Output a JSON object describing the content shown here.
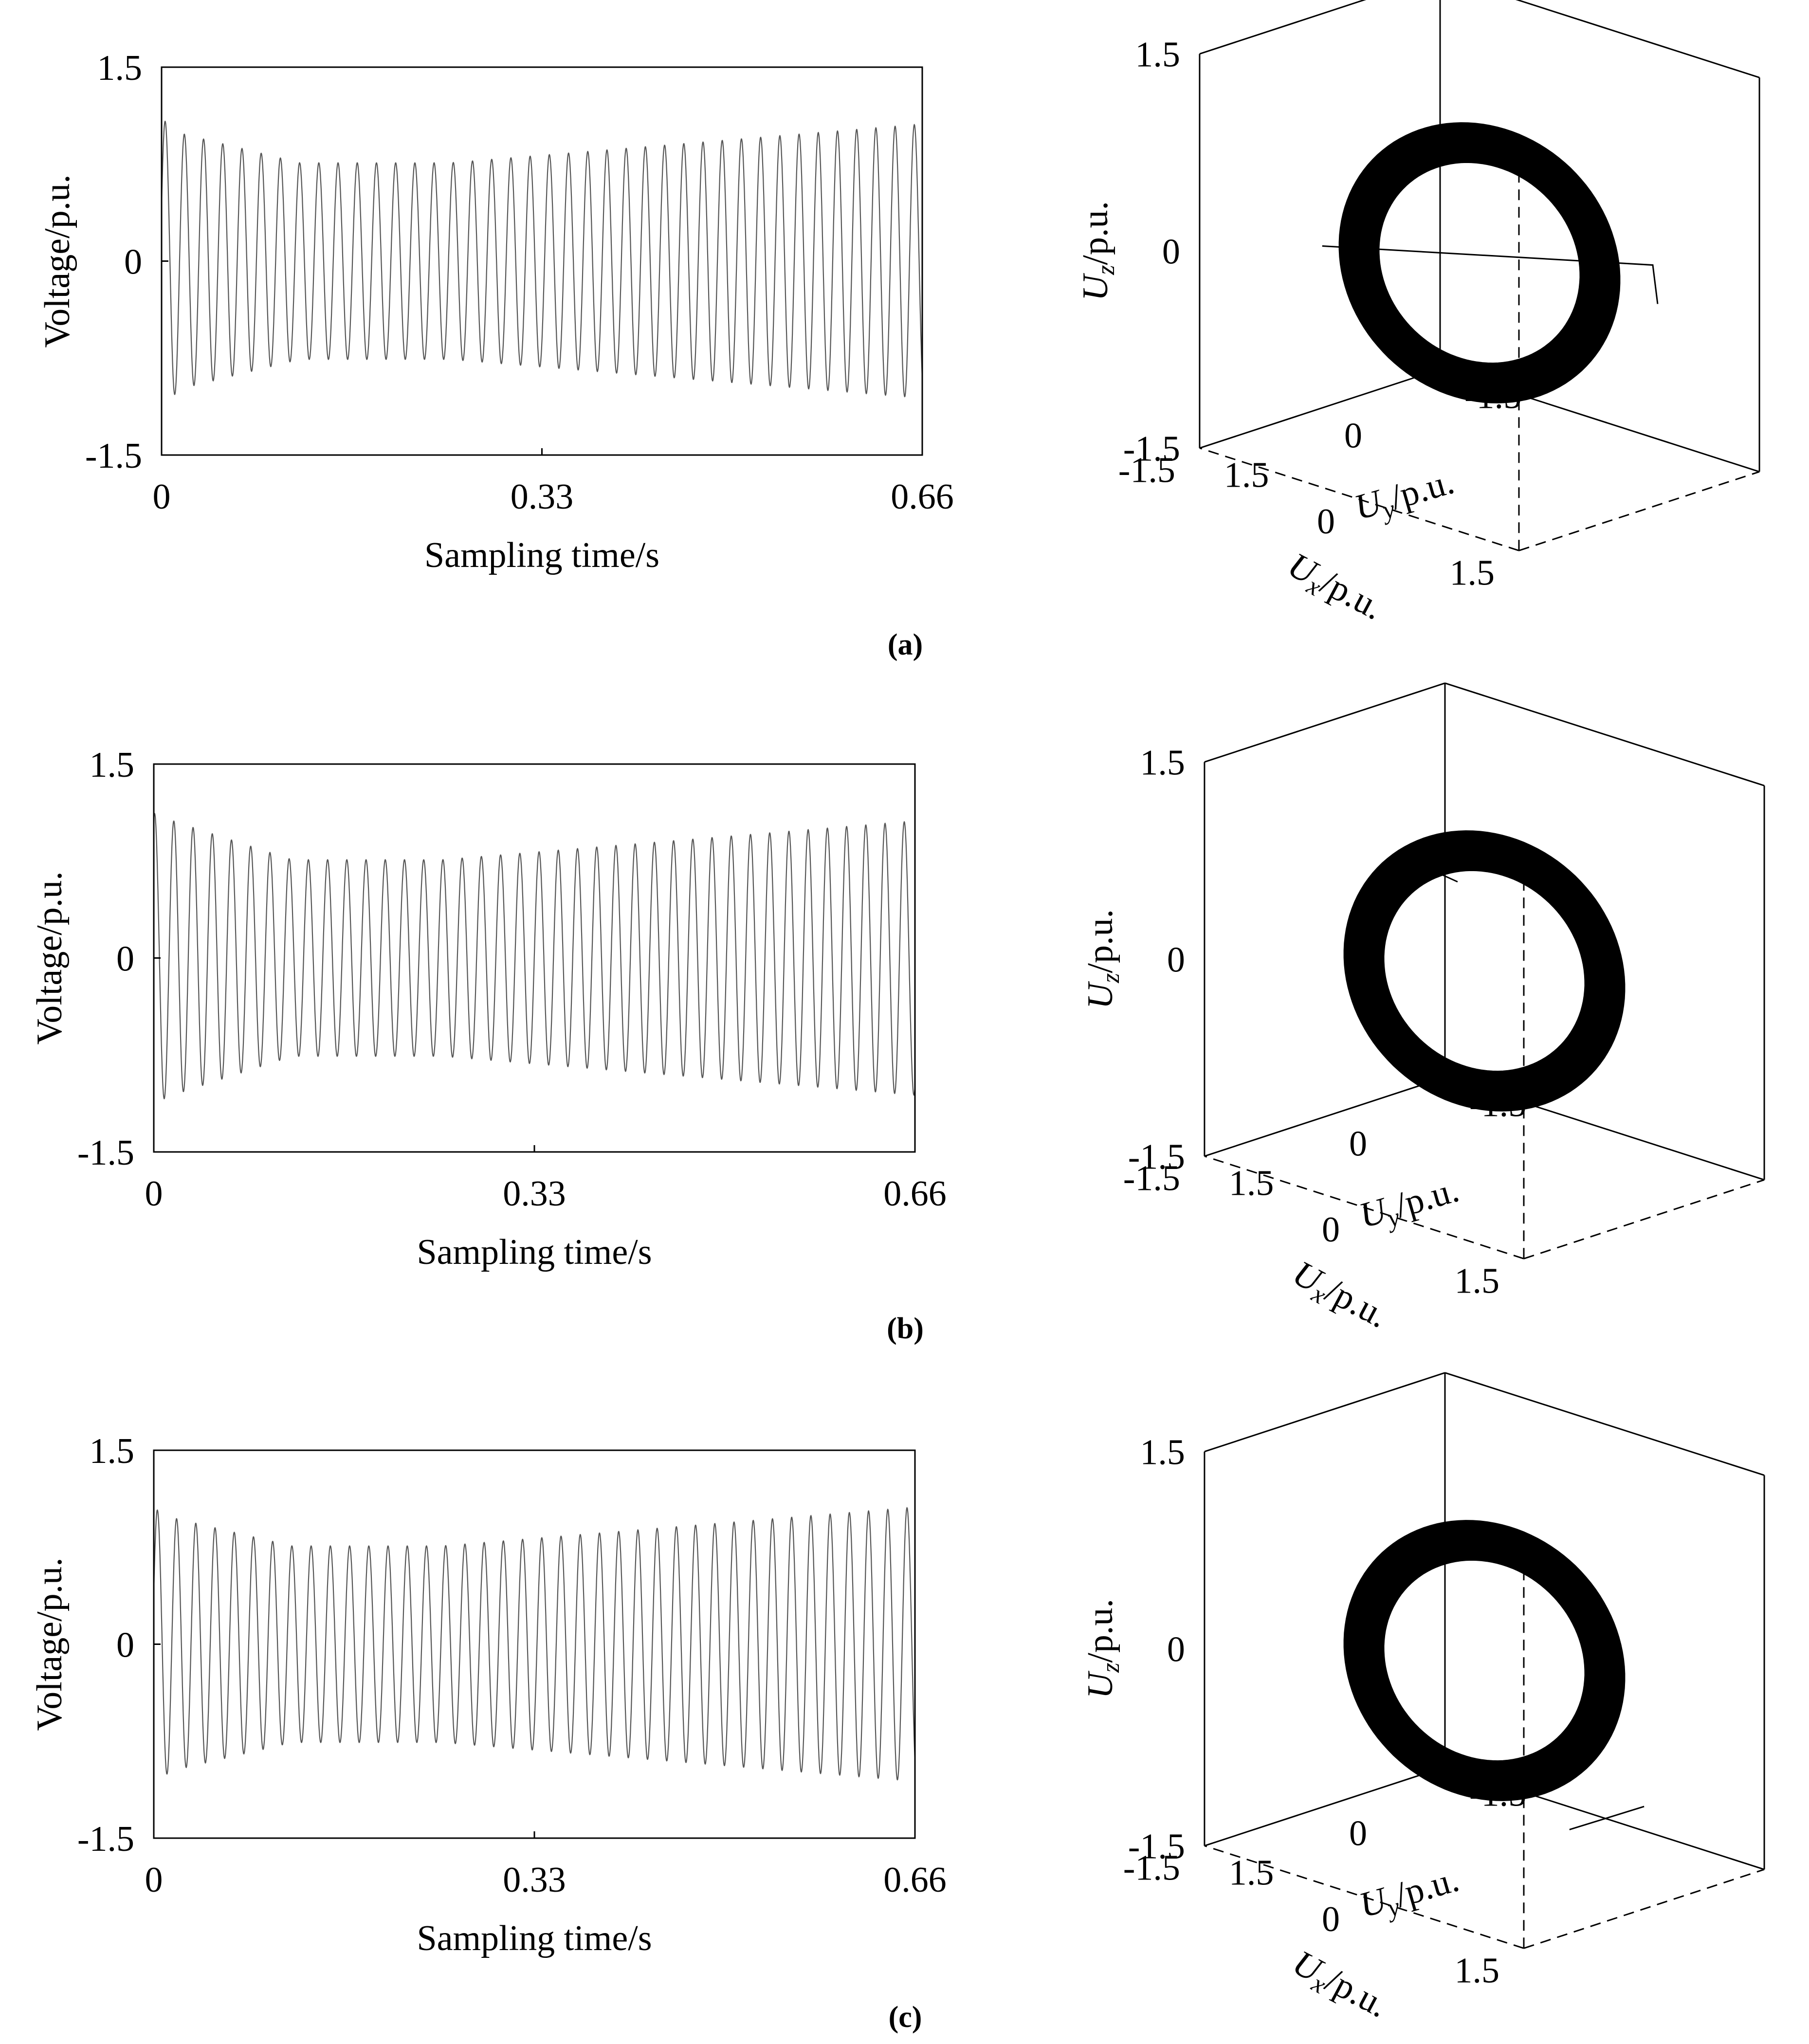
{
  "chart_data": [
    {
      "panel": "a",
      "caption": "(a)",
      "left_plot": {
        "type": "line",
        "ylabel": "Voltage/p.u.",
        "xlabel": "Sampling time/s",
        "xlim": [
          0,
          0.66
        ],
        "ylim": [
          -1.5,
          1.5
        ],
        "xticks": [
          "0",
          "0.33",
          "0.66"
        ],
        "yticks": [
          "1.5",
          "0",
          "-1.5"
        ],
        "frequency_hz": 60,
        "amplitude_start": 0.98,
        "amplitude_min": 0.76,
        "amplitude_end": 1.06,
        "initial_peak": 1.1
      },
      "right_plot": {
        "type": "scatter3d",
        "zlabel_main": "U",
        "zlabel_sub": "z",
        "zlabel_unit": "/p.u.",
        "xlabel_main": "U",
        "xlabel_sub": "x",
        "xlabel_unit": "/p.u.",
        "ylabel_main": "U",
        "ylabel_sub": "y",
        "ylabel_unit": "/p.u.",
        "zticks": [
          "1.5",
          "0",
          "-1.5"
        ],
        "xticks": [
          "1.5",
          "0",
          "-1.5"
        ],
        "yticks": [
          "-1.5",
          "0",
          "1.5"
        ],
        "lim": [
          -1.5,
          1.5
        ],
        "radius_min": 0.76,
        "radius_max": 1.06,
        "transient": "line-through-center"
      }
    },
    {
      "panel": "b",
      "caption": "(b)",
      "left_plot": {
        "type": "line",
        "ylabel": "Voltage/p.u.",
        "xlabel": "Sampling time/s",
        "xlim": [
          0,
          0.66
        ],
        "ylim": [
          -1.5,
          1.5
        ],
        "xticks": [
          "0",
          "0.33",
          "0.66"
        ],
        "yticks": [
          "1.5",
          "0",
          "-1.5"
        ],
        "frequency_hz": 60,
        "amplitude_start": 1.05,
        "amplitude_min": 0.76,
        "amplitude_end": 1.06,
        "initial_peak": 1.12
      },
      "right_plot": {
        "type": "scatter3d",
        "zlabel_main": "U",
        "zlabel_sub": "z",
        "zlabel_unit": "/p.u.",
        "xlabel_main": "U",
        "xlabel_sub": "x",
        "xlabel_unit": "/p.u.",
        "ylabel_main": "U",
        "ylabel_sub": "y",
        "ylabel_unit": "/p.u.",
        "zticks": [
          "1.5",
          "0",
          "-1.5"
        ],
        "xticks": [
          "1.5",
          "0",
          "-1.5"
        ],
        "yticks": [
          "-1.5",
          "0",
          "1.5"
        ],
        "lim": [
          -1.5,
          1.5
        ],
        "radius_min": 0.76,
        "radius_max": 1.06,
        "transient": "top-spur"
      }
    },
    {
      "panel": "c",
      "caption": "(c)",
      "left_plot": {
        "type": "line",
        "ylabel": "Voltage/p.u.",
        "xlabel": "Sampling time/s",
        "xlim": [
          0,
          0.66
        ],
        "ylim": [
          -1.5,
          1.5
        ],
        "xticks": [
          "0",
          "0.33",
          "0.66"
        ],
        "yticks": [
          "1.5",
          "0",
          "-1.5"
        ],
        "frequency_hz": 60,
        "amplitude_start": 0.97,
        "amplitude_min": 0.76,
        "amplitude_end": 1.06,
        "initial_peak": 1.05
      },
      "right_plot": {
        "type": "scatter3d",
        "zlabel_main": "U",
        "zlabel_sub": "z",
        "zlabel_unit": "/p.u.",
        "xlabel_main": "U",
        "xlabel_sub": "x",
        "xlabel_unit": "/p.u.",
        "ylabel_main": "U",
        "ylabel_sub": "y",
        "ylabel_unit": "/p.u.",
        "zticks": [
          "1.5",
          "0",
          "-1.5"
        ],
        "xticks": [
          "1.5",
          "0",
          "-1.5"
        ],
        "yticks": [
          "-1.5",
          "0",
          "1.5"
        ],
        "lim": [
          -1.5,
          1.5
        ],
        "radius_min": 0.76,
        "radius_max": 1.06,
        "transient": "bottom-spur"
      }
    }
  ]
}
